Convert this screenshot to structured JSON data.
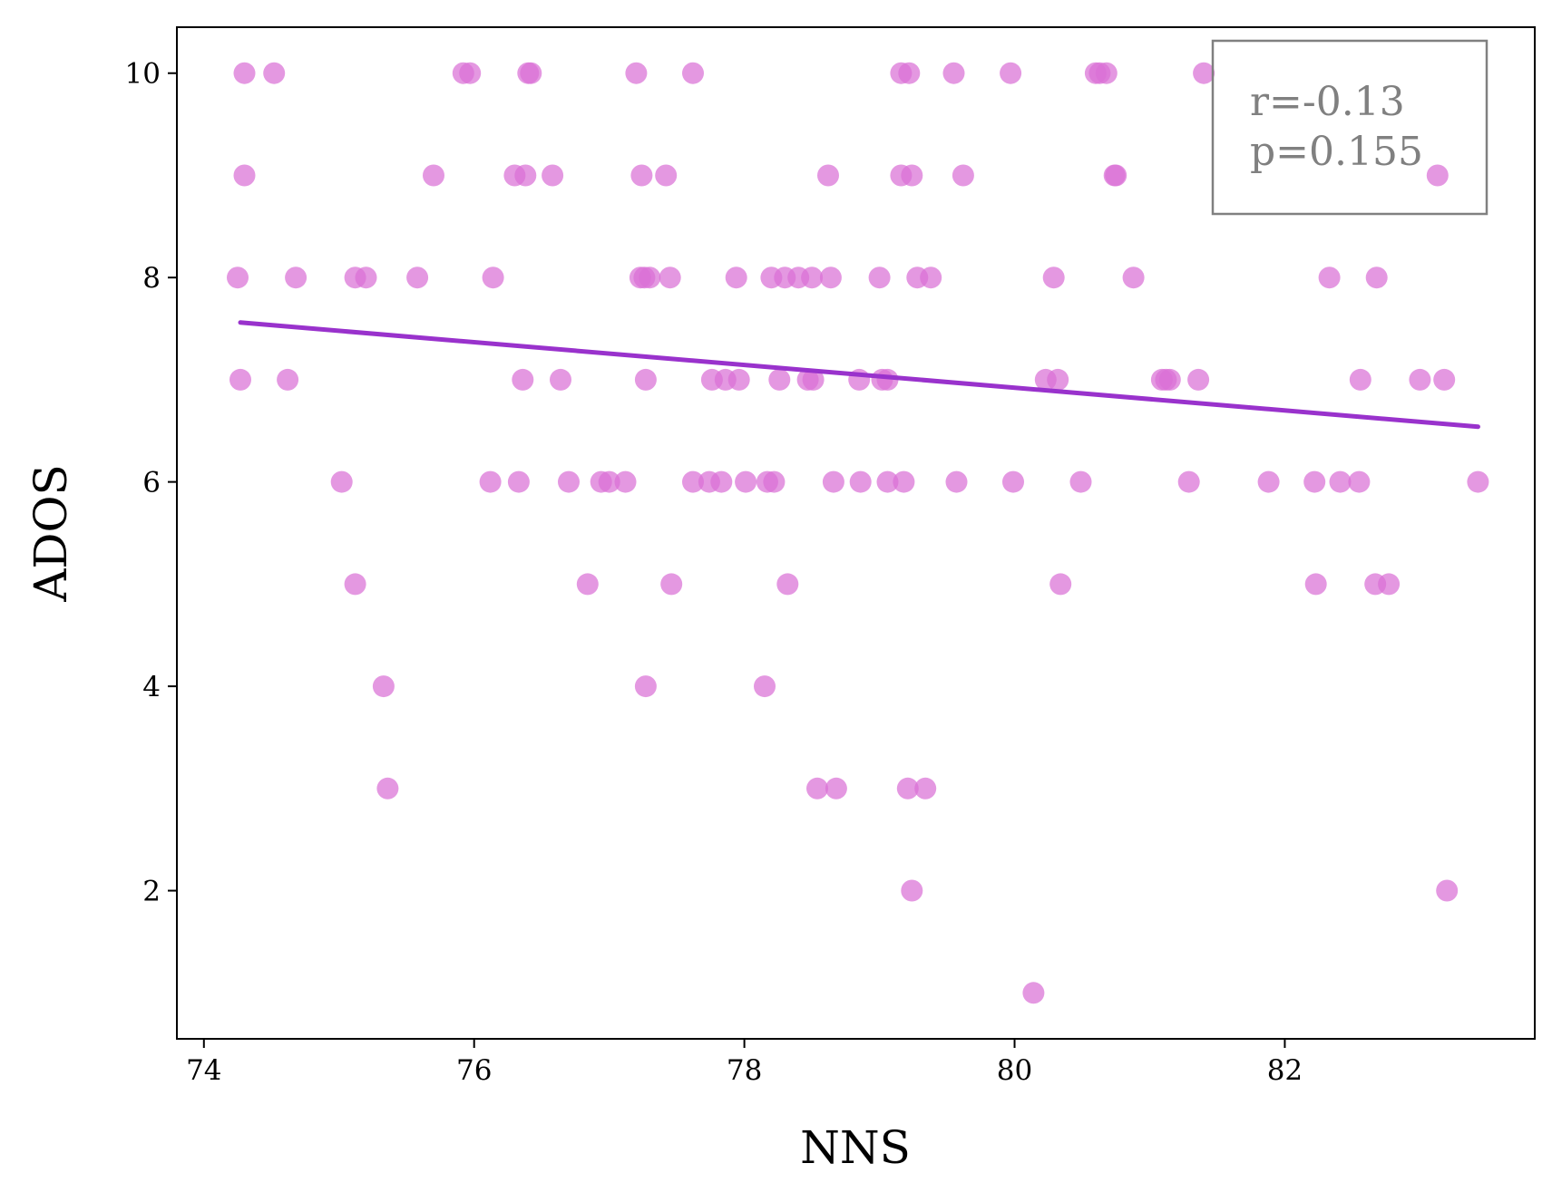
{
  "chart_data": {
    "type": "scatter",
    "title": "",
    "xlabel": "NNS",
    "ylabel": "ADOS",
    "xlim": [
      73.8,
      83.85
    ],
    "ylim": [
      0.55,
      10.45
    ],
    "xticks": [
      74,
      76,
      78,
      80,
      82
    ],
    "yticks": [
      2,
      4,
      6,
      8,
      10
    ],
    "grid": false,
    "annotation": {
      "lines": [
        "r=-0.13",
        "p=0.155"
      ],
      "placement": "top-right"
    },
    "colors": {
      "points": "#da70d6",
      "fit_line": "#9932cc",
      "annotation_border": "#808080",
      "annotation_text": "#808080"
    },
    "fit_line": {
      "x": [
        74.27,
        83.43
      ],
      "y": [
        7.56,
        6.54
      ]
    },
    "series": [
      {
        "points": [
          [
            74.3,
            10
          ],
          [
            74.3,
            9
          ],
          [
            74.25,
            8
          ],
          [
            74.27,
            7
          ],
          [
            74.52,
            10
          ],
          [
            74.68,
            8
          ],
          [
            74.62,
            7
          ],
          [
            75.02,
            6
          ],
          [
            75.12,
            8
          ],
          [
            75.2,
            8
          ],
          [
            75.12,
            5
          ],
          [
            75.33,
            4
          ],
          [
            75.36,
            3
          ],
          [
            75.58,
            8
          ],
          [
            75.7,
            9
          ],
          [
            75.92,
            10
          ],
          [
            75.97,
            10
          ],
          [
            76.12,
            6
          ],
          [
            76.14,
            8
          ],
          [
            76.3,
            9
          ],
          [
            76.33,
            6
          ],
          [
            76.38,
            9
          ],
          [
            76.36,
            7
          ],
          [
            76.4,
            10
          ],
          [
            76.42,
            10
          ],
          [
            76.58,
            9
          ],
          [
            76.64,
            7
          ],
          [
            76.7,
            6
          ],
          [
            76.84,
            5
          ],
          [
            76.94,
            6
          ],
          [
            77.0,
            6
          ],
          [
            77.12,
            6
          ],
          [
            77.2,
            10
          ],
          [
            77.24,
            9
          ],
          [
            77.23,
            8
          ],
          [
            77.26,
            8
          ],
          [
            77.3,
            8
          ],
          [
            77.27,
            7
          ],
          [
            77.27,
            4
          ],
          [
            77.42,
            9
          ],
          [
            77.45,
            8
          ],
          [
            77.46,
            5
          ],
          [
            77.62,
            10
          ],
          [
            77.62,
            6
          ],
          [
            77.74,
            6
          ],
          [
            77.76,
            7
          ],
          [
            77.83,
            6
          ],
          [
            77.86,
            7
          ],
          [
            77.94,
            8
          ],
          [
            77.96,
            7
          ],
          [
            78.01,
            6
          ],
          [
            78.15,
            4
          ],
          [
            78.17,
            6
          ],
          [
            78.22,
            6
          ],
          [
            78.2,
            8
          ],
          [
            78.26,
            7
          ],
          [
            78.3,
            8
          ],
          [
            78.32,
            5
          ],
          [
            78.4,
            8
          ],
          [
            78.47,
            7
          ],
          [
            78.51,
            7
          ],
          [
            78.5,
            8
          ],
          [
            78.54,
            3
          ],
          [
            78.62,
            9
          ],
          [
            78.66,
            6
          ],
          [
            78.64,
            8
          ],
          [
            78.68,
            3
          ],
          [
            78.85,
            7
          ],
          [
            78.86,
            6
          ],
          [
            79.0,
            8
          ],
          [
            79.02,
            7
          ],
          [
            79.06,
            6
          ],
          [
            79.06,
            7
          ],
          [
            79.16,
            9
          ],
          [
            79.16,
            10
          ],
          [
            79.18,
            6
          ],
          [
            79.22,
            10
          ],
          [
            79.21,
            3
          ],
          [
            79.24,
            9
          ],
          [
            79.24,
            2
          ],
          [
            79.28,
            8
          ],
          [
            79.34,
            3
          ],
          [
            79.38,
            8
          ],
          [
            79.55,
            10
          ],
          [
            79.57,
            6
          ],
          [
            79.62,
            9
          ],
          [
            79.97,
            10
          ],
          [
            79.99,
            6
          ],
          [
            80.14,
            1
          ],
          [
            80.23,
            7
          ],
          [
            80.29,
            8
          ],
          [
            80.32,
            7
          ],
          [
            80.34,
            5
          ],
          [
            80.49,
            6
          ],
          [
            80.6,
            10
          ],
          [
            80.63,
            10
          ],
          [
            80.68,
            10
          ],
          [
            80.74,
            9
          ],
          [
            80.75,
            9
          ],
          [
            80.88,
            8
          ],
          [
            81.09,
            7
          ],
          [
            81.12,
            7
          ],
          [
            81.15,
            7
          ],
          [
            81.29,
            6
          ],
          [
            81.36,
            7
          ],
          [
            81.4,
            10
          ],
          [
            81.88,
            6
          ],
          [
            82.22,
            6
          ],
          [
            82.23,
            5
          ],
          [
            82.33,
            8
          ],
          [
            82.41,
            6
          ],
          [
            82.55,
            6
          ],
          [
            82.56,
            7
          ],
          [
            82.67,
            5
          ],
          [
            82.68,
            8
          ],
          [
            82.77,
            5
          ],
          [
            83.0,
            7
          ],
          [
            83.13,
            9
          ],
          [
            83.18,
            7
          ],
          [
            83.2,
            2
          ],
          [
            83.43,
            6
          ]
        ]
      }
    ]
  }
}
